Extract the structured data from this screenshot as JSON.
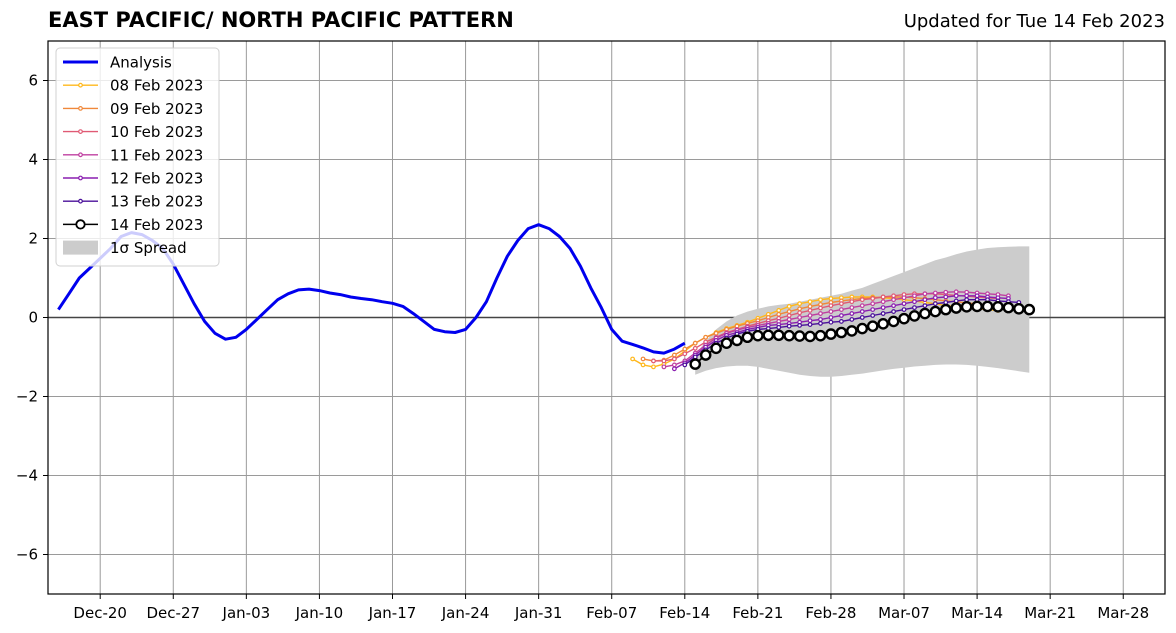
{
  "header": {
    "title": "EAST PACIFIC/ NORTH PACIFIC PATTERN",
    "updated": "Updated for Tue 14 Feb 2023"
  },
  "chart_data": {
    "type": "line",
    "title": "EAST PACIFIC/ NORTH PACIFIC PATTERN",
    "xlabel": "",
    "ylabel": "",
    "xlim": [
      "2022-12-15",
      "2023-04-01"
    ],
    "ylim": [
      -7,
      7
    ],
    "grid": true,
    "legend_position": "top-left",
    "x_ticks": [
      "Dec-20",
      "Dec-27",
      "Jan-03",
      "Jan-10",
      "Jan-17",
      "Jan-24",
      "Jan-31",
      "Feb-07",
      "Feb-14",
      "Feb-21",
      "Feb-28",
      "Mar-07",
      "Mar-14",
      "Mar-21",
      "Mar-28"
    ],
    "x_tick_dates": [
      "2022-12-20",
      "2022-12-27",
      "2023-01-03",
      "2023-01-10",
      "2023-01-17",
      "2023-01-24",
      "2023-01-31",
      "2023-02-07",
      "2023-02-14",
      "2023-02-21",
      "2023-02-28",
      "2023-03-07",
      "2023-03-14",
      "2023-03-21",
      "2023-03-28"
    ],
    "y_ticks": [
      6,
      4,
      2,
      0,
      -2,
      -4,
      -6
    ],
    "y_tick_labels": [
      "6",
      "4",
      "2",
      "0",
      "−2",
      "−4",
      "−6"
    ],
    "series": [
      {
        "name": "Analysis",
        "color": "#0000ee",
        "style": "thick",
        "start": "2022-12-16",
        "values": [
          0.2,
          0.6,
          1.0,
          1.25,
          1.5,
          1.75,
          2.05,
          2.15,
          2.1,
          1.95,
          1.75,
          1.35,
          0.85,
          0.35,
          -0.1,
          -0.4,
          -0.55,
          -0.5,
          -0.3,
          -0.05,
          0.2,
          0.45,
          0.6,
          0.7,
          0.72,
          0.68,
          0.62,
          0.58,
          0.52,
          0.48,
          0.45,
          0.4,
          0.36,
          0.28,
          0.1,
          -0.1,
          -0.3,
          -0.36,
          -0.38,
          -0.3,
          0.0,
          0.4,
          1.0,
          1.55,
          1.95,
          2.25,
          2.35,
          2.25,
          2.05,
          1.75,
          1.3,
          0.75,
          0.25,
          -0.3,
          -0.6,
          -0.68,
          -0.77,
          -0.87,
          -0.9,
          -0.8,
          -0.65
        ]
      },
      {
        "name": "08 Feb 2023",
        "color": "#ffb81c",
        "style": "forecast",
        "start": "2023-02-09",
        "values": [
          -1.05,
          -1.2,
          -1.25,
          -1.18,
          -1.05,
          -0.85,
          -0.65,
          -0.5,
          -0.38,
          -0.28,
          -0.2,
          -0.12,
          -0.02,
          0.08,
          0.18,
          0.28,
          0.35,
          0.4,
          0.45,
          0.48,
          0.5,
          0.52,
          0.52,
          0.52,
          0.5,
          0.48,
          0.45,
          0.42,
          0.38,
          0.35,
          0.3,
          0.28,
          0.25,
          0.22,
          0.2,
          0.18
        ]
      },
      {
        "name": "09 Feb 2023",
        "color": "#f0883a",
        "style": "forecast",
        "start": "2023-02-10",
        "values": [
          -1.05,
          -1.1,
          -1.08,
          -0.95,
          -0.8,
          -0.65,
          -0.5,
          -0.4,
          -0.3,
          -0.22,
          -0.15,
          -0.08,
          0.0,
          0.08,
          0.15,
          0.22,
          0.28,
          0.33,
          0.38,
          0.42,
          0.45,
          0.48,
          0.5,
          0.52,
          0.52,
          0.52,
          0.5,
          0.48,
          0.45,
          0.42,
          0.4,
          0.37,
          0.35,
          0.32,
          0.3
        ]
      },
      {
        "name": "10 Feb 2023",
        "color": "#e05a74",
        "style": "forecast",
        "start": "2023-02-11",
        "values": [
          -1.1,
          -1.1,
          -1.05,
          -0.92,
          -0.78,
          -0.62,
          -0.5,
          -0.38,
          -0.3,
          -0.22,
          -0.15,
          -0.08,
          -0.02,
          0.05,
          0.12,
          0.18,
          0.24,
          0.3,
          0.35,
          0.4,
          0.45,
          0.48,
          0.52,
          0.55,
          0.58,
          0.6,
          0.6,
          0.6,
          0.58,
          0.56,
          0.54,
          0.52,
          0.5,
          0.48
        ]
      },
      {
        "name": "11 Feb 2023",
        "color": "#bf3fa0",
        "style": "forecast",
        "start": "2023-02-12",
        "values": [
          -1.25,
          -1.2,
          -1.1,
          -0.9,
          -0.7,
          -0.52,
          -0.4,
          -0.32,
          -0.25,
          -0.2,
          -0.15,
          -0.1,
          -0.05,
          0.0,
          0.05,
          0.1,
          0.15,
          0.2,
          0.25,
          0.3,
          0.35,
          0.4,
          0.45,
          0.5,
          0.55,
          0.6,
          0.62,
          0.64,
          0.65,
          0.64,
          0.62,
          0.6,
          0.58,
          0.55
        ]
      },
      {
        "name": "12 Feb 2023",
        "color": "#8a1fb0",
        "style": "forecast",
        "start": "2023-02-13",
        "values": [
          -1.3,
          -1.15,
          -0.95,
          -0.75,
          -0.58,
          -0.45,
          -0.38,
          -0.3,
          -0.25,
          -0.2,
          -0.18,
          -0.15,
          -0.12,
          -0.08,
          -0.05,
          0.0,
          0.05,
          0.1,
          0.15,
          0.2,
          0.25,
          0.3,
          0.35,
          0.4,
          0.45,
          0.5,
          0.52,
          0.55,
          0.55,
          0.55,
          0.52,
          0.5,
          0.48
        ]
      },
      {
        "name": "13 Feb 2023",
        "color": "#4a0f9a",
        "style": "forecast",
        "start": "2023-02-14",
        "values": [
          -1.2,
          -1.0,
          -0.82,
          -0.65,
          -0.52,
          -0.42,
          -0.35,
          -0.3,
          -0.28,
          -0.25,
          -0.22,
          -0.2,
          -0.18,
          -0.15,
          -0.12,
          -0.1,
          -0.05,
          0.0,
          0.05,
          0.1,
          0.15,
          0.2,
          0.25,
          0.3,
          0.35,
          0.38,
          0.42,
          0.45,
          0.45,
          0.45,
          0.42,
          0.4,
          0.38
        ]
      },
      {
        "name": "14 Feb 2023",
        "color": "#000000",
        "style": "current",
        "start": "2023-02-15",
        "values": [
          -1.18,
          -0.95,
          -0.78,
          -0.65,
          -0.58,
          -0.5,
          -0.46,
          -0.45,
          -0.45,
          -0.46,
          -0.47,
          -0.48,
          -0.46,
          -0.42,
          -0.38,
          -0.34,
          -0.28,
          -0.22,
          -0.16,
          -0.1,
          -0.03,
          0.04,
          0.1,
          0.15,
          0.2,
          0.24,
          0.27,
          0.28,
          0.28,
          0.27,
          0.25,
          0.22,
          0.2
        ]
      }
    ],
    "spread": {
      "name": "1σ Spread",
      "color": "#cccccc",
      "start": "2023-02-15",
      "upper": [
        -0.95,
        -0.6,
        -0.3,
        -0.1,
        0.05,
        0.15,
        0.22,
        0.28,
        0.32,
        0.35,
        0.4,
        0.45,
        0.5,
        0.55,
        0.6,
        0.68,
        0.75,
        0.85,
        0.95,
        1.05,
        1.15,
        1.25,
        1.35,
        1.45,
        1.52,
        1.6,
        1.67,
        1.72,
        1.76,
        1.78,
        1.79,
        1.8,
        1.8
      ],
      "lower": [
        -1.45,
        -1.35,
        -1.28,
        -1.24,
        -1.22,
        -1.22,
        -1.25,
        -1.3,
        -1.35,
        -1.4,
        -1.45,
        -1.48,
        -1.5,
        -1.5,
        -1.48,
        -1.45,
        -1.42,
        -1.38,
        -1.34,
        -1.3,
        -1.27,
        -1.24,
        -1.22,
        -1.2,
        -1.19,
        -1.19,
        -1.2,
        -1.22,
        -1.25,
        -1.28,
        -1.32,
        -1.36,
        -1.4
      ]
    }
  }
}
